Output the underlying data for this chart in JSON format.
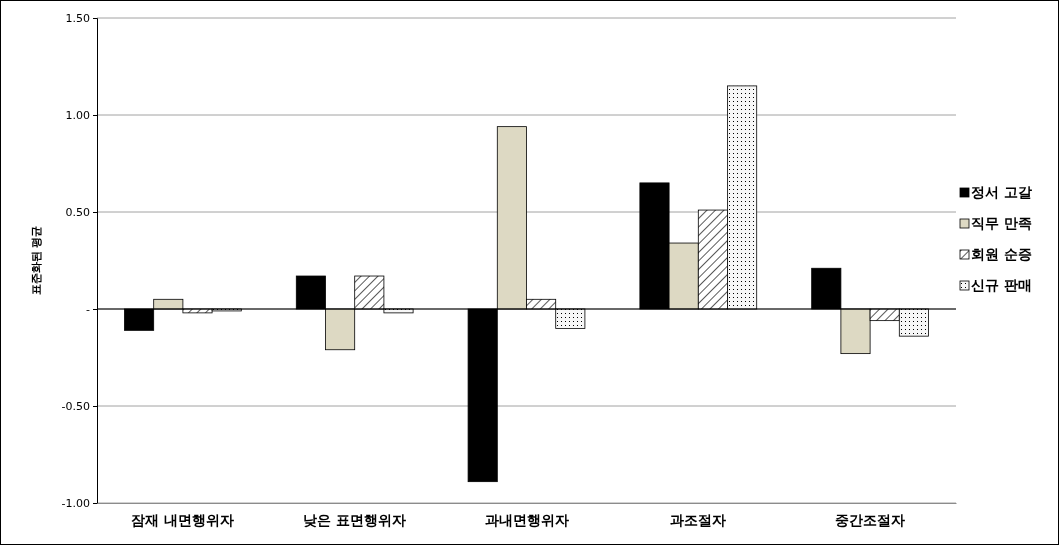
{
  "chart_data": {
    "type": "bar",
    "ylabel": "표준화된 평균",
    "categories": [
      "잠재 내면행위자",
      "낮은 표면행위자",
      "과내면행위자",
      "과조절자",
      "중간조절자"
    ],
    "series": [
      {
        "name": "정서 고갈",
        "color": "#000000",
        "values": [
          -0.11,
          0.17,
          -0.89,
          0.65,
          0.21
        ]
      },
      {
        "name": "직무 만족",
        "color": "#ddd9c3",
        "values": [
          0.05,
          -0.21,
          0.94,
          0.34,
          -0.23
        ]
      },
      {
        "name": "회원 순증",
        "color": "#000000",
        "values": [
          -0.02,
          0.17,
          0.05,
          0.51,
          -0.06
        ]
      },
      {
        "name": "신규 판매",
        "color": "#000000",
        "values": [
          -0.01,
          -0.02,
          -0.1,
          1.15,
          -0.14
        ]
      }
    ],
    "ylim": [
      -1,
      1.5
    ],
    "yticks": [
      {
        "value": -1,
        "label": "-1.00"
      },
      {
        "value": -0.5,
        "label": "-0.50"
      },
      {
        "value": 0,
        "label": "-"
      },
      {
        "value": 0.5,
        "label": "0.50"
      },
      {
        "value": 1,
        "label": "1.00"
      },
      {
        "value": 1.5,
        "label": "1.50"
      }
    ],
    "grid": "y",
    "legend": "right"
  }
}
